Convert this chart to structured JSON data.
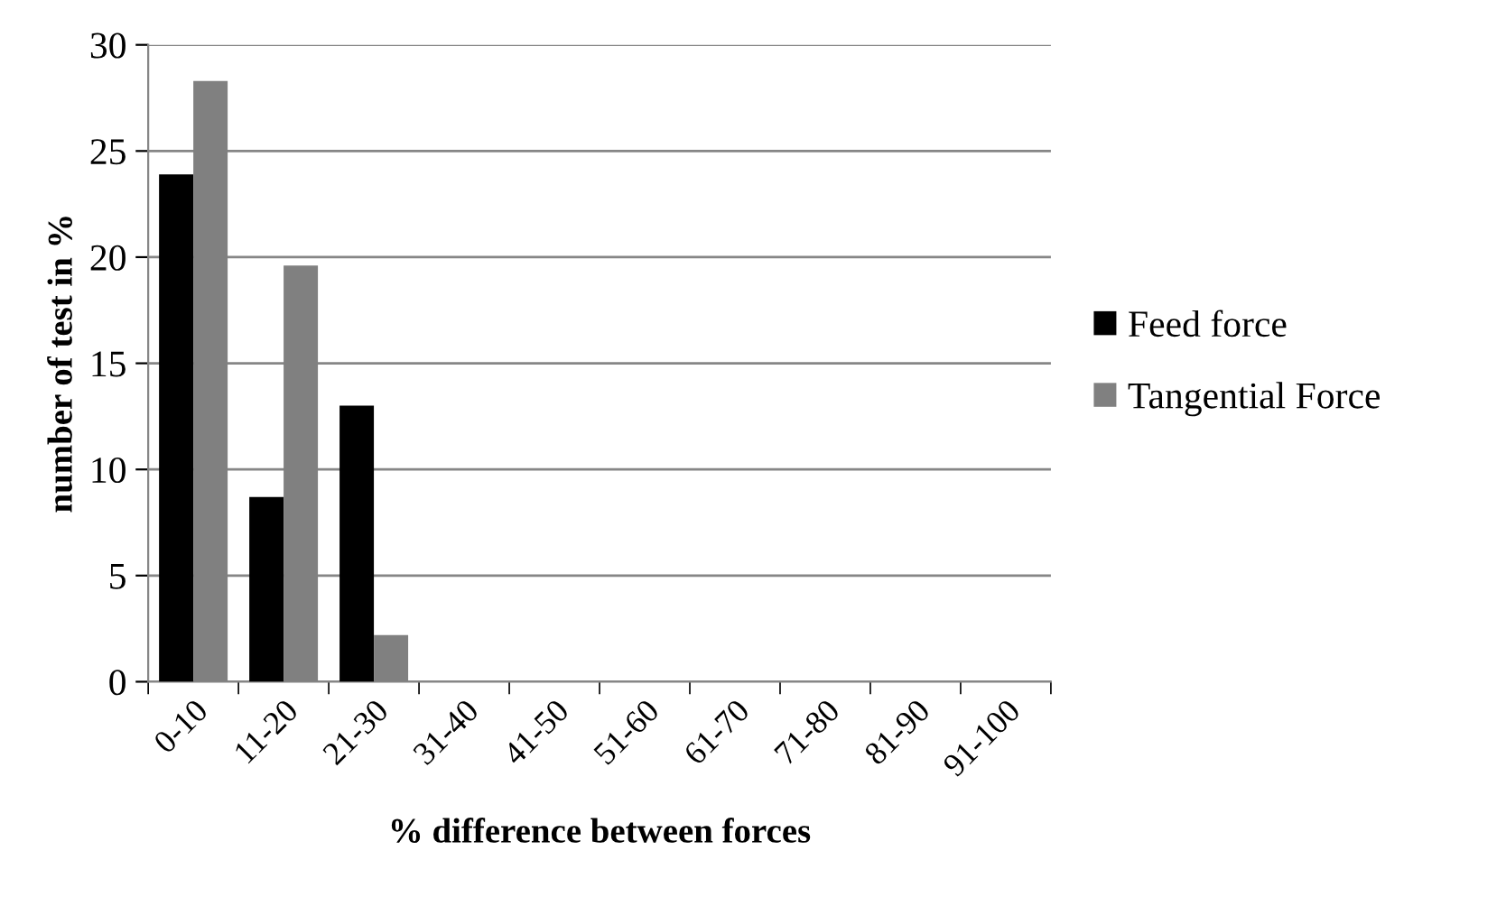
{
  "chart_data": {
    "type": "bar",
    "xlabel": "% difference between forces",
    "ylabel": "number of test in %",
    "categories": [
      "0-10",
      "11-20",
      "21-30",
      "31-40",
      "41-50",
      "51-60",
      "61-70",
      "71-80",
      "81-90",
      "91-100"
    ],
    "series": [
      {
        "name": "Feed force",
        "color": "#000000",
        "values": [
          23.9,
          8.7,
          13.0,
          0,
          0,
          0,
          0,
          0,
          0,
          0
        ]
      },
      {
        "name": "Tangential Force",
        "color": "#808080",
        "values": [
          28.3,
          19.6,
          2.2,
          0,
          0,
          0,
          0,
          0,
          0,
          0
        ]
      }
    ],
    "ylim": [
      0,
      30
    ],
    "yticks": [
      0,
      5,
      10,
      15,
      20,
      25,
      30
    ],
    "grid": "y",
    "legend": "right"
  }
}
